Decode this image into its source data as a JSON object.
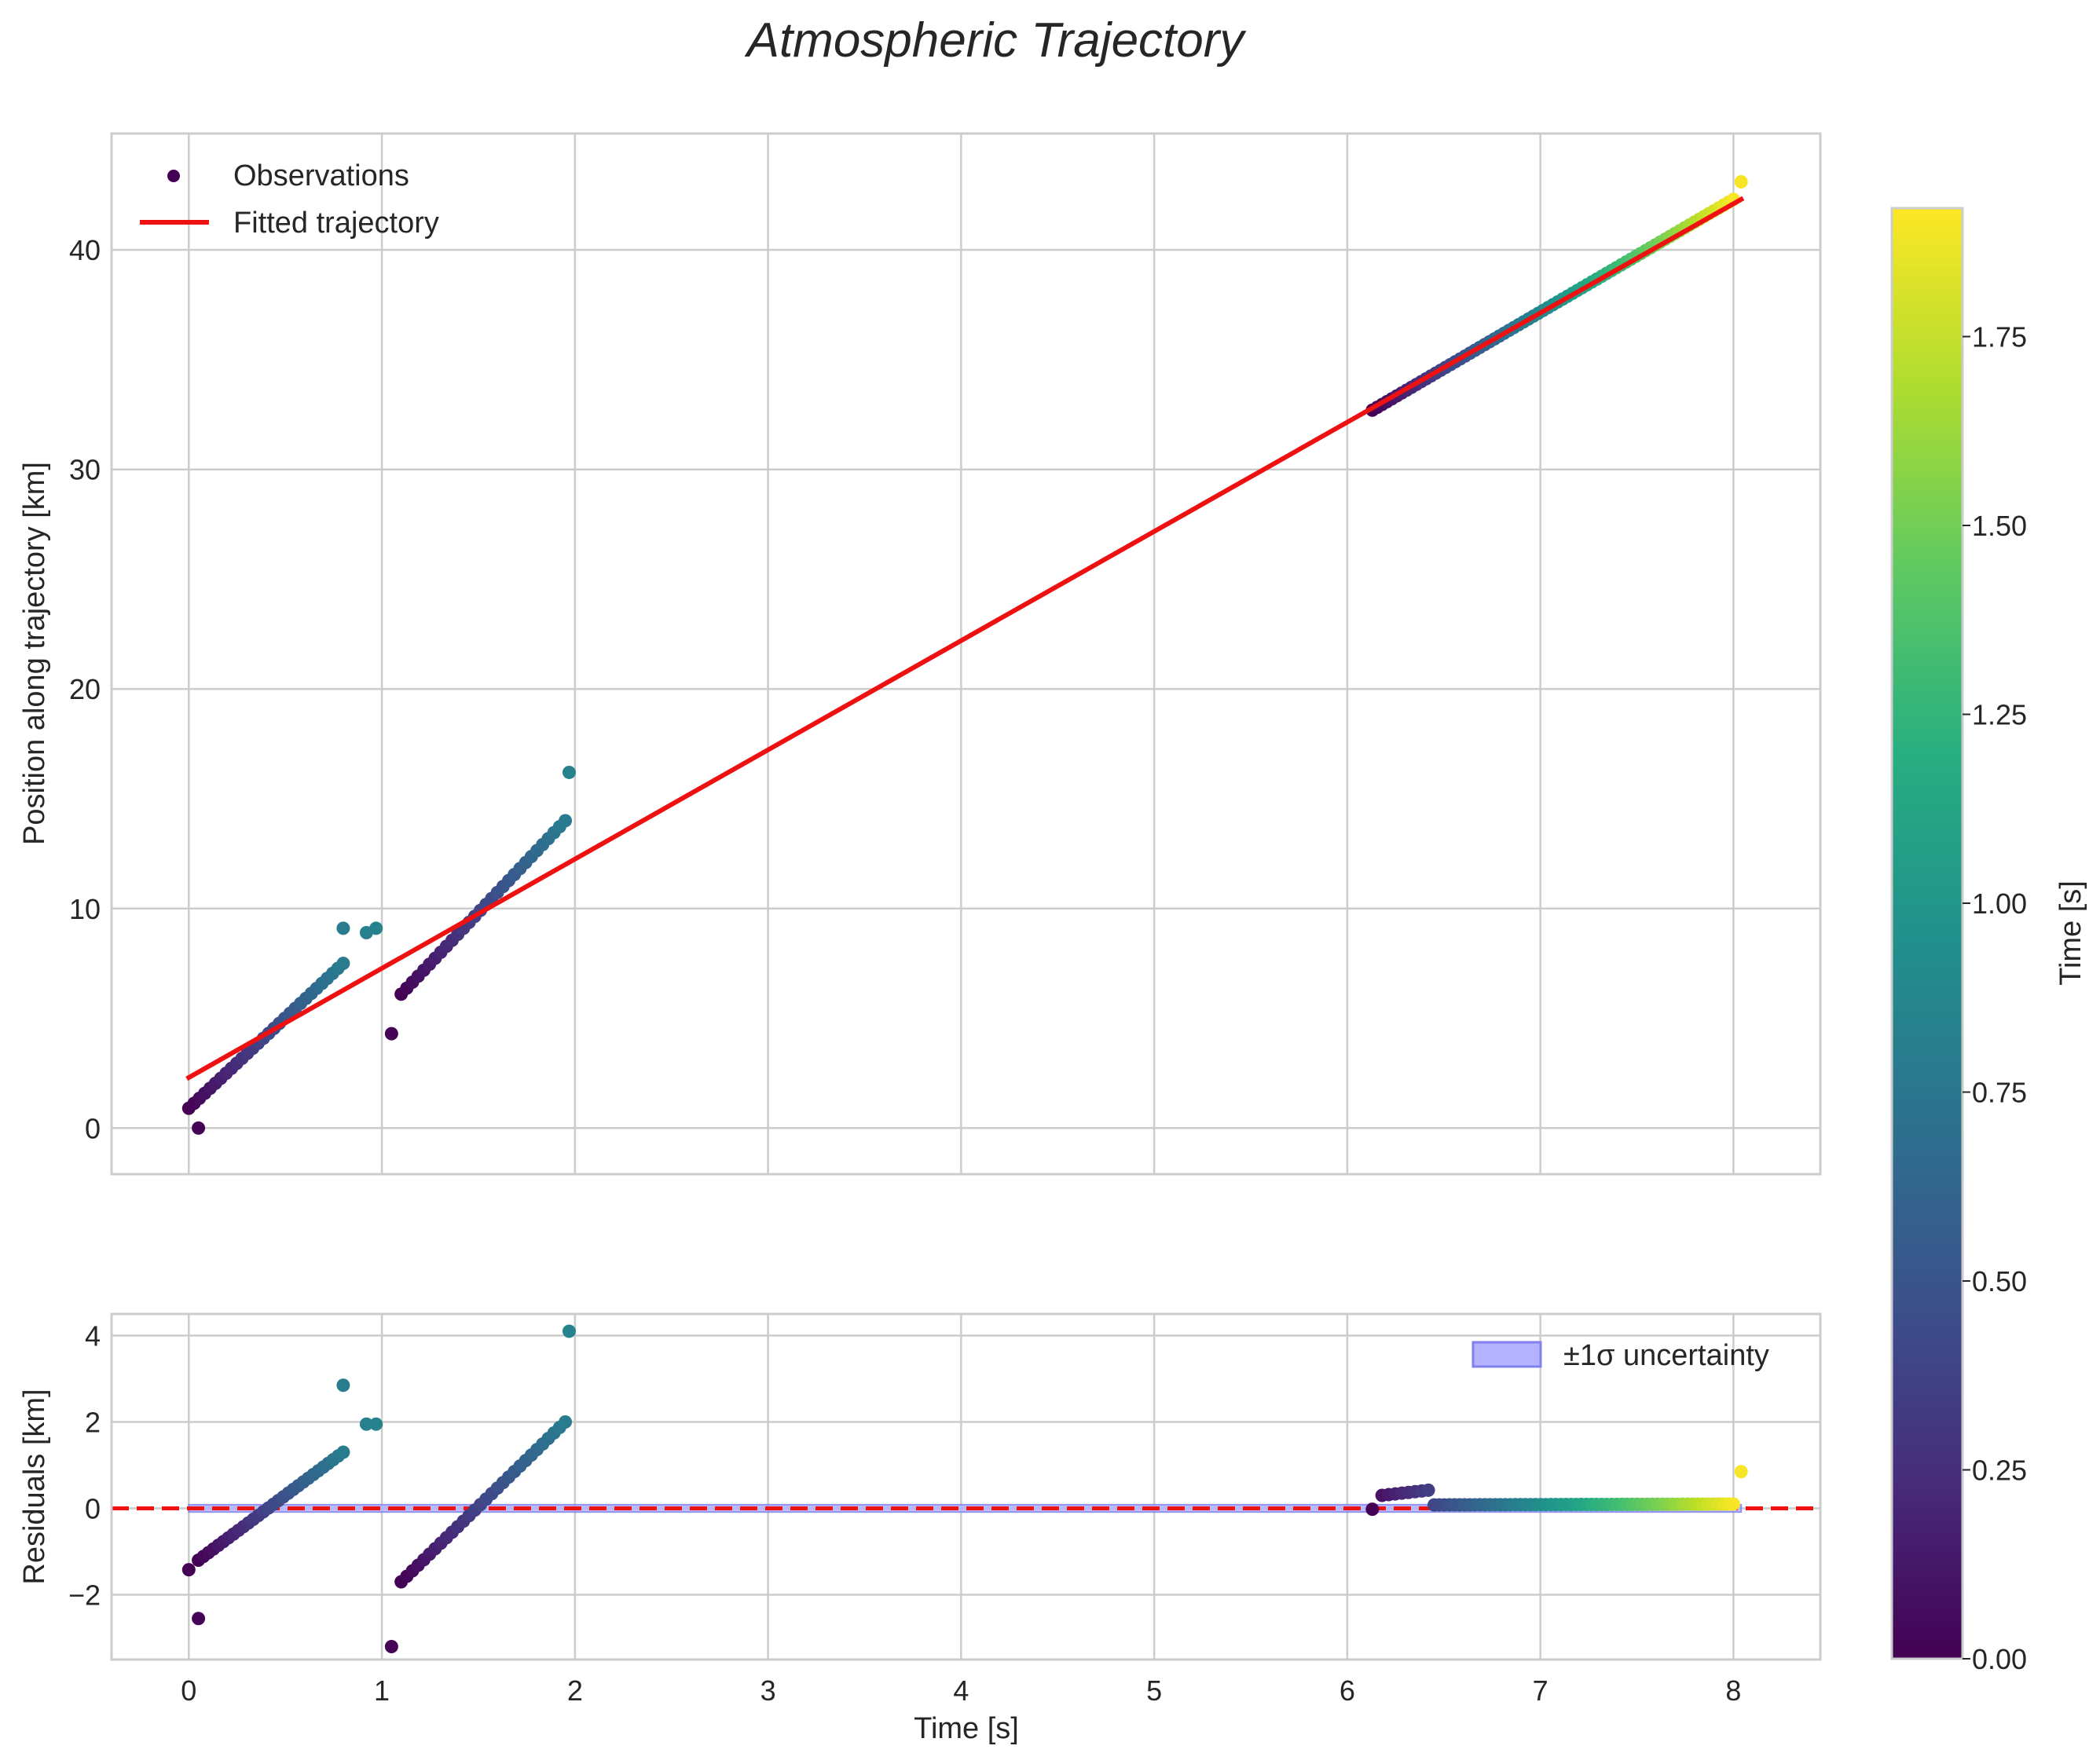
{
  "chart_data": [
    {
      "id": "main",
      "type": "scatter",
      "title": "Atmospheric Trajectory",
      "xlabel": "",
      "ylabel": "Position along trajectory [km]",
      "xlim": [
        -0.4,
        8.45
      ],
      "ylim": [
        -2.1,
        45.3
      ],
      "xticks": [
        0,
        1,
        2,
        3,
        4,
        5,
        6,
        7,
        8
      ],
      "yticks": [
        0,
        10,
        20,
        30,
        40
      ],
      "grid": true,
      "legend": {
        "position": "upper-left",
        "entries": [
          {
            "label": "Observations",
            "kind": "marker",
            "color": "#440154"
          },
          {
            "label": "Fitted trajectory",
            "kind": "line",
            "color": "#ee1111"
          }
        ]
      },
      "series": [
        {
          "name": "Observations",
          "colored_by": "Time [s]",
          "segments": [
            {
              "t_start": 0.0,
              "t_end": 0.8,
              "x_start": 0.0,
              "x_end": 0.8,
              "y_start": 0.9,
              "y_end": 7.5,
              "n": 30
            },
            {
              "t_start": 0.0,
              "t_end": 0.8,
              "x_start": 1.1,
              "x_end": 1.95,
              "y_start": 6.1,
              "y_end": 14.0,
              "n": 30
            },
            {
              "t_start": 0.0,
              "t_end": 1.9,
              "x_start": 6.13,
              "x_end": 8.0,
              "y_start": 32.7,
              "y_end": 42.3,
              "n": 75
            }
          ],
          "points": [
            {
              "x": 0.05,
              "y": 0.0,
              "t": 0.02
            },
            {
              "x": 1.05,
              "y": 4.3,
              "t": 0.02
            },
            {
              "x": 0.8,
              "y": 9.1,
              "t": 0.8
            },
            {
              "x": 0.92,
              "y": 8.9,
              "t": 0.82
            },
            {
              "x": 0.97,
              "y": 9.1,
              "t": 0.85
            },
            {
              "x": 1.97,
              "y": 16.2,
              "t": 0.85
            },
            {
              "x": 8.04,
              "y": 43.1,
              "t": 1.9
            }
          ]
        },
        {
          "name": "Fitted trajectory",
          "color": "#ee1111",
          "x": [
            0.0,
            8.04
          ],
          "y": [
            2.3,
            42.3
          ]
        }
      ]
    },
    {
      "id": "residuals",
      "type": "scatter",
      "xlabel": "Time [s]",
      "ylabel": "Residuals [km]",
      "xlim": [
        -0.4,
        8.45
      ],
      "ylim": [
        -3.5,
        4.5
      ],
      "xticks": [
        0,
        1,
        2,
        3,
        4,
        5,
        6,
        7,
        8
      ],
      "yticks": [
        -2,
        0,
        2,
        4
      ],
      "ytick_labels": [
        "−2",
        "0",
        "2",
        "4"
      ],
      "grid": true,
      "legend": {
        "position": "upper-right",
        "entries": [
          {
            "label": "±1σ uncertainty",
            "kind": "patch",
            "color": "#b3b3ff"
          }
        ]
      },
      "reference_line": {
        "y": 0,
        "color": "#ee1111",
        "style": "dashed"
      },
      "uncertainty_band": {
        "x": [
          0.0,
          8.04
        ],
        "lower": -0.03,
        "upper": 0.03
      },
      "series": [
        {
          "name": "Residuals",
          "colored_by": "Time [s]",
          "segments": [
            {
              "t_start": 0.0,
              "t_end": 0.8,
              "x_start": 0.05,
              "x_end": 0.8,
              "y_start": -1.2,
              "y_end": 1.3,
              "n": 30
            },
            {
              "t_start": 0.0,
              "t_end": 0.8,
              "x_start": 1.1,
              "x_end": 1.95,
              "y_start": -1.7,
              "y_end": 2.0,
              "n": 30
            },
            {
              "t_start": 0.1,
              "t_end": 0.35,
              "x_start": 6.18,
              "x_end": 6.42,
              "y_start": 0.3,
              "y_end": 0.42,
              "n": 8
            },
            {
              "t_start": 0.4,
              "t_end": 1.9,
              "x_start": 6.45,
              "x_end": 8.0,
              "y_start": 0.08,
              "y_end": 0.1,
              "n": 60
            }
          ],
          "points": [
            {
              "x": 0.0,
              "y": -1.42,
              "t": 0.0
            },
            {
              "x": 0.05,
              "y": -2.55,
              "t": 0.02
            },
            {
              "x": 1.05,
              "y": -3.2,
              "t": 0.02
            },
            {
              "x": 0.8,
              "y": 2.85,
              "t": 0.8
            },
            {
              "x": 0.92,
              "y": 1.95,
              "t": 0.82
            },
            {
              "x": 0.97,
              "y": 1.95,
              "t": 0.85
            },
            {
              "x": 1.97,
              "y": 4.1,
              "t": 0.85
            },
            {
              "x": 6.13,
              "y": -0.02,
              "t": 0.0
            },
            {
              "x": 8.04,
              "y": 0.85,
              "t": 1.9
            }
          ]
        }
      ]
    },
    {
      "id": "colorbar",
      "type": "colorbar",
      "label": "Time [s]",
      "colormap": "viridis",
      "range": [
        0.0,
        1.92
      ],
      "ticks": [
        0.0,
        0.25,
        0.5,
        0.75,
        1.0,
        1.25,
        1.5,
        1.75
      ],
      "tick_labels": [
        "0.00",
        "0.25",
        "0.50",
        "0.75",
        "1.00",
        "1.25",
        "1.50",
        "1.75"
      ]
    }
  ]
}
